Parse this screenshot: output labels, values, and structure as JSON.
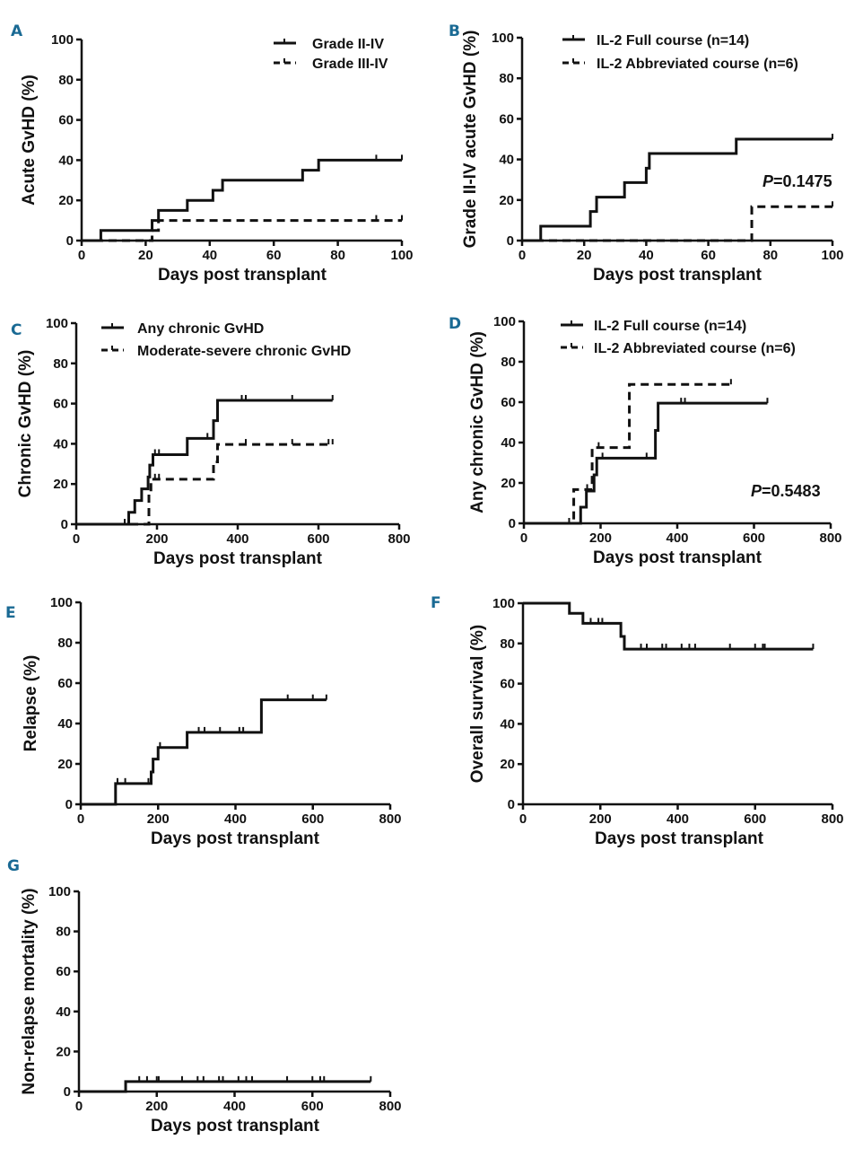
{
  "chart_data": [
    {
      "panel": "A",
      "type": "line",
      "step": true,
      "xlabel": "Days post transplant",
      "ylabel": "Acute GvHD (%)",
      "xlim": [
        0,
        100
      ],
      "ylim": [
        0,
        100
      ],
      "xticks": [
        0,
        20,
        40,
        60,
        80,
        100
      ],
      "yticks": [
        0,
        20,
        40,
        60,
        80,
        100
      ],
      "legend": "top-right",
      "grid": false,
      "series": [
        {
          "name": "Grade II-IV",
          "style": "solid",
          "x": [
            0,
            6,
            22,
            24,
            33,
            41,
            44,
            69,
            74,
            100
          ],
          "y": [
            0,
            5,
            10,
            15,
            20,
            25,
            30,
            35,
            40,
            40
          ],
          "censored": [
            92,
            100
          ]
        },
        {
          "name": "Grade III-IV",
          "style": "dashed",
          "x": [
            0,
            22,
            24,
            100
          ],
          "y": [
            0,
            5,
            10,
            10
          ],
          "censored": [
            92,
            100
          ]
        }
      ]
    },
    {
      "panel": "B",
      "type": "line",
      "step": true,
      "xlabel": "Days post transplant",
      "ylabel": "Grade II-IV acute GvHD (%)",
      "xlim": [
        0,
        100
      ],
      "ylim": [
        0,
        100
      ],
      "xticks": [
        0,
        20,
        40,
        60,
        80,
        100
      ],
      "yticks": [
        0,
        20,
        40,
        60,
        80,
        100
      ],
      "legend": "top-right",
      "grid": false,
      "annotation": {
        "p_label": "P",
        "p_value": "=0.1475"
      },
      "series": [
        {
          "name": "IL-2 Full course (n=14)",
          "style": "solid",
          "x": [
            0,
            6,
            22,
            24,
            33,
            40,
            41,
            69,
            100
          ],
          "y": [
            0,
            7.1,
            14.3,
            21.4,
            28.6,
            35.7,
            42.9,
            50,
            50
          ],
          "censored": [
            100
          ]
        },
        {
          "name": "IL-2 Abbreviated course (n=6)",
          "style": "dashed",
          "x": [
            0,
            74,
            100
          ],
          "y": [
            0,
            16.7,
            16.7
          ],
          "censored": [
            100
          ]
        }
      ]
    },
    {
      "panel": "C",
      "type": "line",
      "step": true,
      "xlabel": "Days post transplant",
      "ylabel": "Chronic GvHD (%)",
      "xlim": [
        0,
        800
      ],
      "ylim": [
        0,
        100
      ],
      "xticks": [
        0,
        200,
        400,
        600,
        800
      ],
      "yticks": [
        0,
        20,
        40,
        60,
        80,
        100
      ],
      "legend": "top",
      "grid": false,
      "series": [
        {
          "name": "Any chronic GvHD",
          "style": "solid",
          "x": [
            0,
            130,
            145,
            162,
            178,
            182,
            190,
            275,
            340,
            350,
            635
          ],
          "y": [
            0,
            5.9,
            11.8,
            17.6,
            23.5,
            29.4,
            34.6,
            42.7,
            51.5,
            61.6,
            61.6
          ],
          "censored": [
            120,
            195,
            205,
            325,
            410,
            420,
            535,
            635
          ]
        },
        {
          "name": "Moderate-severe chronic GvHD",
          "style": "dashed",
          "x": [
            0,
            180,
            185,
            340,
            350,
            635
          ],
          "y": [
            0,
            16,
            22.4,
            31,
            39.7,
            39.7
          ],
          "censored": [
            195,
            205,
            420,
            535,
            625,
            635
          ]
        }
      ]
    },
    {
      "panel": "D",
      "type": "line",
      "step": true,
      "xlabel": "Days post transplant",
      "ylabel": "Any chronic GvHD (%)",
      "xlim": [
        0,
        800
      ],
      "ylim": [
        0,
        100
      ],
      "xticks": [
        0,
        200,
        400,
        600,
        800
      ],
      "yticks": [
        0,
        20,
        40,
        60,
        80,
        100
      ],
      "legend": "top-right",
      "grid": false,
      "annotation": {
        "p_label": "P",
        "p_value": "=0.5483"
      },
      "series": [
        {
          "name": "IL-2 Full course (n=14)",
          "style": "solid",
          "x": [
            0,
            148,
            163,
            183,
            190,
            343,
            350,
            635
          ],
          "y": [
            0,
            8,
            16,
            24,
            32.3,
            46,
            59.5,
            59.5
          ],
          "censored": [
            205,
            320,
            410,
            420,
            635
          ]
        },
        {
          "name": "IL-2 Abbreviated course (n=6)",
          "style": "dashed",
          "x": [
            0,
            130,
            178,
            275,
            540
          ],
          "y": [
            0,
            16.7,
            37.5,
            68.8,
            68.8
          ],
          "censored": [
            118,
            165,
            195,
            540
          ]
        }
      ]
    },
    {
      "panel": "E",
      "type": "line",
      "step": true,
      "xlabel": "Days post transplant",
      "ylabel": "Relapse (%)",
      "xlim": [
        0,
        800
      ],
      "ylim": [
        0,
        100
      ],
      "xticks": [
        0,
        200,
        400,
        600,
        800
      ],
      "yticks": [
        0,
        20,
        40,
        60,
        80,
        100
      ],
      "legend": "none",
      "grid": false,
      "series": [
        {
          "style": "solid",
          "x": [
            0,
            90,
            182,
            187,
            200,
            275,
            467,
            635
          ],
          "y": [
            0,
            10.3,
            16,
            22.4,
            28.1,
            35.6,
            51.7,
            51.7
          ],
          "censored": [
            95,
            115,
            175,
            205,
            305,
            320,
            360,
            410,
            420,
            535,
            600,
            635
          ]
        }
      ]
    },
    {
      "panel": "F",
      "type": "line",
      "step": true,
      "xlabel": "Days post transplant",
      "ylabel": "Overall survival (%)",
      "xlim": [
        0,
        800
      ],
      "ylim": [
        0,
        100
      ],
      "xticks": [
        0,
        200,
        400,
        600,
        800
      ],
      "yticks": [
        0,
        20,
        40,
        60,
        80,
        100
      ],
      "legend": "none",
      "grid": false,
      "series": [
        {
          "style": "solid",
          "x": [
            0,
            120,
            155,
            253,
            262,
            750
          ],
          "y": [
            100,
            95,
            90,
            83.5,
            77.2,
            77.2
          ],
          "censored": [
            175,
            195,
            205,
            305,
            320,
            360,
            370,
            410,
            430,
            445,
            535,
            600,
            620,
            625,
            750
          ]
        }
      ]
    },
    {
      "panel": "G",
      "type": "line",
      "step": true,
      "xlabel": "Days post transplant",
      "ylabel": "Non-relapse mortality (%)",
      "xlim": [
        0,
        800
      ],
      "ylim": [
        0,
        100
      ],
      "xticks": [
        0,
        200,
        400,
        600,
        800
      ],
      "yticks": [
        0,
        20,
        40,
        60,
        80,
        100
      ],
      "legend": "none",
      "grid": false,
      "series": [
        {
          "style": "solid",
          "x": [
            0,
            120,
            750
          ],
          "y": [
            0,
            5,
            5
          ],
          "censored": [
            155,
            175,
            200,
            205,
            265,
            305,
            320,
            360,
            370,
            410,
            430,
            445,
            535,
            600,
            620,
            630,
            750
          ]
        }
      ]
    }
  ],
  "colors": {
    "line": "#111111",
    "panel_label": "#1a6a94"
  }
}
